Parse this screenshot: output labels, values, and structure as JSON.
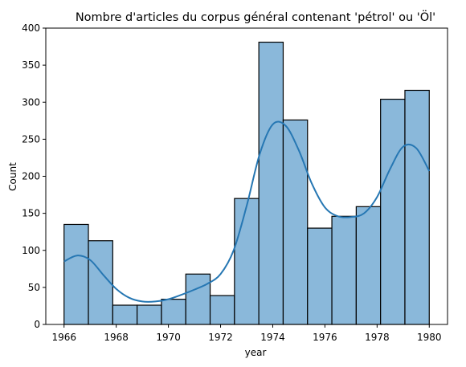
{
  "chart_data": {
    "type": "bar",
    "title": "Nombre d'articles du corpus général contenant 'pétrol' ou 'Öl'",
    "xlabel": "year",
    "ylabel": "Count",
    "xlim": [
      1965.3,
      1980.7
    ],
    "ylim": [
      0,
      400
    ],
    "xticks": [
      1966,
      1968,
      1970,
      1972,
      1974,
      1976,
      1978,
      1980
    ],
    "yticks": [
      0,
      50,
      100,
      150,
      200,
      250,
      300,
      350,
      400
    ],
    "bins": [
      {
        "x0": 1966.0,
        "x1": 1967.0,
        "value": 135
      },
      {
        "x0": 1967.0,
        "x1": 1968.0,
        "value": 113
      },
      {
        "x0": 1968.0,
        "x1": 1969.0,
        "value": 26
      },
      {
        "x0": 1969.0,
        "x1": 1970.0,
        "value": 26
      },
      {
        "x0": 1970.0,
        "x1": 1971.0,
        "value": 34
      },
      {
        "x0": 1971.0,
        "x1": 1972.0,
        "value": 68
      },
      {
        "x0": 1972.0,
        "x1": 1973.0,
        "value": 39
      },
      {
        "x0": 1973.0,
        "x1": 1974.0,
        "value": 170
      },
      {
        "x0": 1974.0,
        "x1": 1975.0,
        "value": 381
      },
      {
        "x0": 1975.0,
        "x1": 1976.0,
        "value": 276
      },
      {
        "x0": 1976.0,
        "x1": 1977.0,
        "value": 130
      },
      {
        "x0": 1977.0,
        "x1": 1978.0,
        "value": 146
      },
      {
        "x0": 1978.0,
        "x1": 1979.0,
        "value": 159
      },
      {
        "x0": 1979.0,
        "x1": 1980.0,
        "value": 304
      },
      {
        "x0": 1980.0,
        "x1": 1981.0,
        "value": 316
      }
    ],
    "kde": {
      "x": [
        1966.0,
        1966.5,
        1967.0,
        1967.5,
        1968.0,
        1968.5,
        1969.0,
        1969.5,
        1970.0,
        1970.5,
        1971.0,
        1971.5,
        1972.0,
        1972.5,
        1973.0,
        1973.5,
        1974.0,
        1974.5,
        1975.0,
        1975.5,
        1976.0,
        1976.5,
        1977.0,
        1977.5,
        1978.0,
        1978.5,
        1979.0,
        1979.5,
        1980.0
      ],
      "y": [
        85,
        93,
        87,
        67,
        48,
        36,
        31,
        31,
        34,
        40,
        47,
        55,
        68,
        100,
        160,
        230,
        270,
        268,
        235,
        190,
        158,
        146,
        145,
        150,
        172,
        210,
        240,
        238,
        207
      ]
    },
    "colors": {
      "bar_fill": "#8ab8da",
      "bar_edge": "#000000",
      "kde_line": "#2677b3"
    },
    "grid": false,
    "legend": "none"
  }
}
